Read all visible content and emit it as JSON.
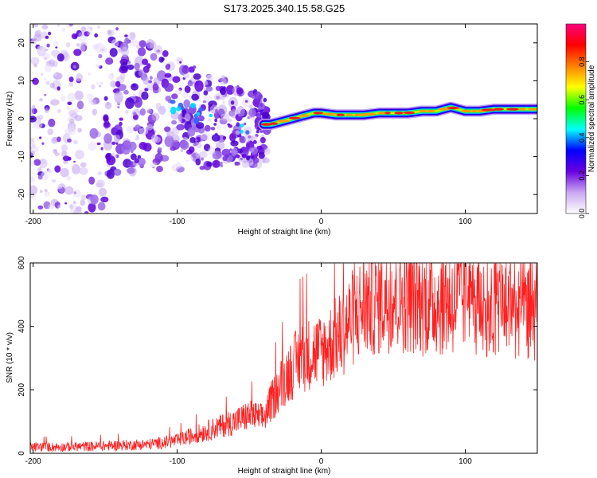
{
  "figure_title": "S173.2025.340.15.58.G25",
  "chart_data": [
    {
      "type": "heatmap",
      "title": "S173.2025.340.15.58.G25",
      "xlabel": "Height of straight line (km)",
      "ylabel": "Frequency (Hz)",
      "xlim": [
        -202,
        150
      ],
      "ylim": [
        -25,
        25
      ],
      "xticks": [
        -200,
        -100,
        0,
        100
      ],
      "xtick_labels": [
        "-200",
        "-100",
        "0",
        "100"
      ],
      "yticks": [
        -20,
        -10,
        0,
        10,
        20
      ],
      "ytick_labels": [
        "-20",
        "-10",
        "0",
        "10",
        "20"
      ],
      "colorbar": {
        "label": "Normalized spectral amplitude",
        "range": [
          0,
          1
        ],
        "ticks": [
          0,
          0.2,
          0.4,
          0.6,
          0.8
        ],
        "tick_labels": [
          "0.0",
          "0.2",
          "0.4",
          "0.6",
          "0.8"
        ],
        "colors": [
          "#ffffff",
          "#c9a8f0",
          "#6a00e0",
          "#0000ff",
          "#00ffff",
          "#00ff00",
          "#ffff00",
          "#ff8000",
          "#ff0000",
          "#ff0080"
        ]
      },
      "ridge": {
        "name": "dominant frequency track",
        "x": [
          -40,
          -35,
          -30,
          -25,
          -20,
          -15,
          -10,
          -5,
          0,
          10,
          20,
          30,
          40,
          50,
          60,
          70,
          80,
          90,
          100,
          110,
          120,
          130,
          140,
          150
        ],
        "y": [
          -1.5,
          -1.5,
          -1,
          -0.5,
          0,
          0.5,
          1,
          1.5,
          1.5,
          1,
          1,
          1,
          1.5,
          1.5,
          1.5,
          2,
          2,
          3,
          2,
          2,
          2.5,
          2.5,
          2.5,
          2.5
        ]
      }
    },
    {
      "type": "line",
      "title": "",
      "xlabel": "Height of straight line (km)",
      "ylabel": "SNR (10 * v/v)",
      "xlim": [
        -202,
        150
      ],
      "ylim": [
        0,
        600
      ],
      "xticks": [
        -200,
        -100,
        0,
        100
      ],
      "xtick_labels": [
        "-200",
        "-100",
        "0",
        "100"
      ],
      "yticks": [
        0,
        200,
        400,
        600
      ],
      "ytick_labels": [
        "0",
        "200",
        "400",
        "600"
      ],
      "color": "#ff2020",
      "series": [
        {
          "name": "SNR",
          "x": [
            -200,
            -180,
            -160,
            -140,
            -120,
            -100,
            -90,
            -80,
            -70,
            -60,
            -50,
            -40,
            -35,
            -30,
            -25,
            -20,
            -15,
            -10,
            -5,
            0,
            5,
            10,
            15,
            20,
            25,
            30,
            40,
            50,
            60,
            70,
            80,
            90,
            100,
            110,
            120,
            130,
            140,
            150
          ],
          "y": [
            20,
            20,
            22,
            25,
            28,
            40,
            55,
            70,
            85,
            100,
            120,
            110,
            160,
            200,
            240,
            270,
            300,
            310,
            320,
            320,
            340,
            360,
            380,
            420,
            440,
            470,
            480,
            500,
            490,
            480,
            480,
            480,
            490,
            470,
            470,
            470,
            460,
            450
          ]
        }
      ]
    }
  ]
}
